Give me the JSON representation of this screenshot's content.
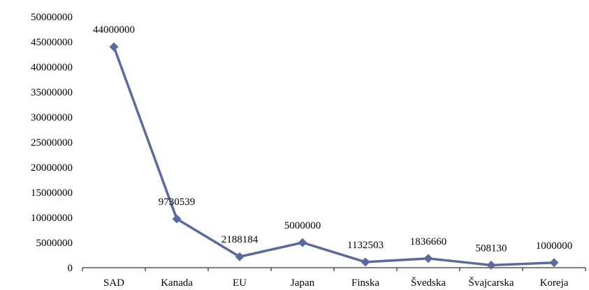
{
  "chart_data": {
    "type": "line",
    "title": "",
    "xlabel": "",
    "ylabel": "",
    "categories": [
      "SAD",
      "Kanada",
      "EU",
      "Japan",
      "Finska",
      "Švedska",
      "Švajcarska",
      "Koreja"
    ],
    "series": [
      {
        "values": [
          44000000,
          9730539,
          2188184,
          5000000,
          1132503,
          1836660,
          508130,
          1000000
        ],
        "data_labels": [
          "44000000",
          "9730539",
          "2188184",
          "5000000",
          "1132503",
          "1836660",
          "508130",
          "1000000"
        ]
      }
    ],
    "yticks": [
      "0",
      "5000000",
      "10000000",
      "15000000",
      "20000000",
      "25000000",
      "30000000",
      "35000000",
      "40000000",
      "45000000",
      "50000000"
    ],
    "ylim": [
      0,
      50000000
    ],
    "grid": false,
    "legend": "none",
    "colors": {
      "line": "#5b6a9c",
      "marker": "#5b6a9c",
      "axis": "#000000"
    }
  }
}
